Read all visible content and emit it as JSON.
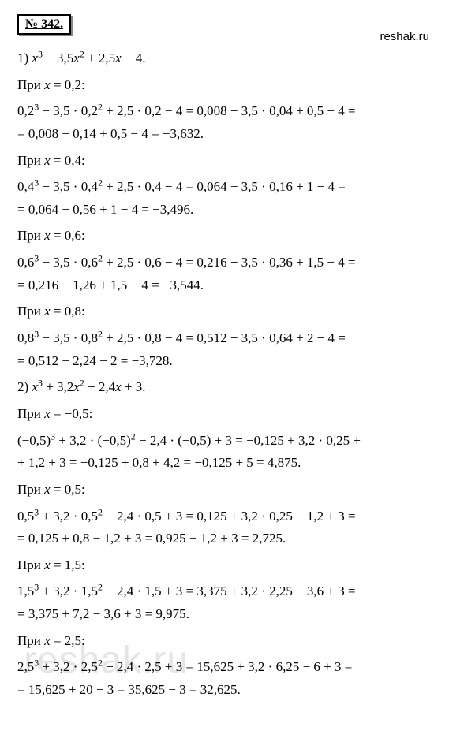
{
  "badge": "№ 342.",
  "site": "reshak.ru",
  "watermark": "reshak.ru",
  "p1": {
    "header_a": "1) ",
    "header_b": " − 3,5",
    "header_c": " + 2,5",
    "header_d": " − 4.",
    "s1": {
      "label_a": "При ",
      "label_b": " = 0,2:",
      "l1a": "0,2",
      "l1b": " − 3,5 · 0,2",
      "l1c": " + 2,5 · 0,2 − 4 = 0,008 − 3,5 · 0,04 + 0,5 − 4 =",
      "l2": "= 0,008 − 0,14 + 0,5 − 4 = −3,632."
    },
    "s2": {
      "label_a": "При ",
      "label_b": " = 0,4:",
      "l1a": "0,4",
      "l1b": " − 3,5 · 0,4",
      "l1c": " + 2,5 · 0,4 − 4 = 0,064 − 3,5 · 0,16 + 1 − 4 =",
      "l2": "= 0,064 − 0,56 + 1 − 4 = −3,496."
    },
    "s3": {
      "label_a": "При ",
      "label_b": " = 0,6:",
      "l1a": "0,6",
      "l1b": " − 3,5 · 0,6",
      "l1c": " + 2,5 · 0,6 − 4 = 0,216 − 3,5 · 0,36 + 1,5 − 4 =",
      "l2": "= 0,216 − 1,26 + 1,5 − 4 = −3,544."
    },
    "s4": {
      "label_a": "При ",
      "label_b": " = 0,8:",
      "l1a": "0,8",
      "l1b": " − 3,5 · 0,8",
      "l1c": " + 2,5 · 0,8 − 4 = 0,512 − 3,5 · 0,64 + 2 − 4 =",
      "l2": "= 0,512 − 2,24 − 2 = −3,728."
    }
  },
  "p2": {
    "header_a": "2) ",
    "header_b": " + 3,2",
    "header_c": " − 2,4",
    "header_d": " + 3.",
    "s1": {
      "label_a": "При ",
      "label_b": " = −0,5:",
      "l1a": "(−0,5)",
      "l1b": " + 3,2 · (−0,5)",
      "l1c": " − 2,4 · (−0,5) + 3 = −0,125 + 3,2 · 0,25 +",
      "l2": "+ 1,2 + 3 = −0,125 + 0,8 + 4,2 = −0,125 + 5 = 4,875."
    },
    "s2": {
      "label_a": "При ",
      "label_b": " = 0,5:",
      "l1a": "0,5",
      "l1b": " + 3,2 · 0,5",
      "l1c": " − 2,4 · 0,5 + 3 = 0,125 + 3,2 · 0,25 − 1,2 + 3 =",
      "l2": "= 0,125 + 0,8 − 1,2 + 3 = 0,925 − 1,2 + 3 = 2,725."
    },
    "s3": {
      "label_a": "При ",
      "label_b": " = 1,5:",
      "l1a": "1,5",
      "l1b": " + 3,2 · 1,5",
      "l1c": " − 2,4 · 1,5 + 3 = 3,375 + 3,2 · 2,25 − 3,6 + 3 =",
      "l2": "= 3,375 + 7,2 − 3,6 + 3 = 9,975."
    },
    "s4": {
      "label_a": "При ",
      "label_b": " = 2,5:",
      "l1a": "2,5",
      "l1b": " + 3,2 · 2,5",
      "l1c": " − 2,4 · 2,5 + 3 = 15,625 + 3,2 · 6,25 − 6 + 3 =",
      "l2": "= 15,625 + 20 − 3 = 35,625 − 3 = 32,625."
    }
  },
  "var": "x",
  "exp3": "3",
  "exp2": "2"
}
